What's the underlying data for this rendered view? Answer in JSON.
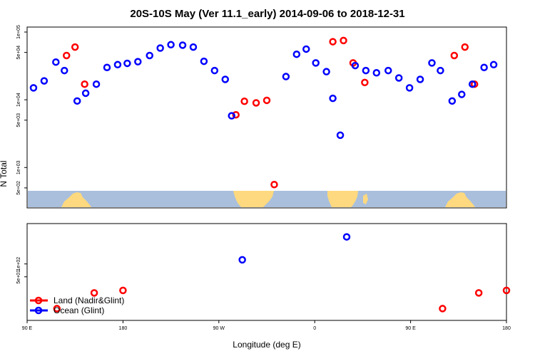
{
  "chart_data": {
    "type": "scatter",
    "title": "20S-10S May (Ver 11.1_early)   2014-09-06 to 2018-12-31",
    "xlabel": "Longitude (deg E)",
    "ylabel": "N Total",
    "x_ticks": [
      {
        "value": 90,
        "label": "90 E"
      },
      {
        "value": 180,
        "label": "180"
      },
      {
        "value": 270,
        "label": "90 W"
      },
      {
        "value": 360,
        "label": "0"
      },
      {
        "value": 450,
        "label": "90 E"
      },
      {
        "value": 540,
        "label": "180"
      }
    ],
    "xlim": [
      90,
      540
    ],
    "upper_panel": {
      "yscale": "log",
      "ylim": [
        300,
        100000
      ],
      "y_ticks": [
        {
          "value": 500,
          "label": "5e+02"
        },
        {
          "value": 1000,
          "label": "1e+03"
        },
        {
          "value": 5000,
          "label": "5e+03"
        },
        {
          "value": 10000,
          "label": "1e+04"
        },
        {
          "value": 50000,
          "label": "5e+04"
        },
        {
          "value": 100000,
          "label": "1e+05"
        }
      ],
      "series": [
        {
          "name": "Land (Nadir&Glint)",
          "color": "#ff0000",
          "points": [
            [
              127,
              45000
            ],
            [
              135,
              60000
            ],
            [
              144,
              17000
            ],
            [
              286,
              6000
            ],
            [
              294,
              9500
            ],
            [
              305,
              9000
            ],
            [
              315,
              9800
            ],
            [
              322,
              560
            ],
            [
              377,
              72000
            ],
            [
              387,
              75000
            ],
            [
              396,
              35000
            ],
            [
              407,
              18000
            ],
            [
              491,
              45000
            ],
            [
              501,
              60000
            ],
            [
              510,
              17000
            ]
          ]
        },
        {
          "name": "Ocean (Glint)",
          "color": "#0000ff",
          "points": [
            [
              96,
              15000
            ],
            [
              106,
              19000
            ],
            [
              117,
              36000
            ],
            [
              125,
              27000
            ],
            [
              137,
              9600
            ],
            [
              145,
              12500
            ],
            [
              155,
              17000
            ],
            [
              165,
              30000
            ],
            [
              175,
              33000
            ],
            [
              184,
              34500
            ],
            [
              194,
              36500
            ],
            [
              205,
              45000
            ],
            [
              215,
              58000
            ],
            [
              225,
              65000
            ],
            [
              236,
              64000
            ],
            [
              246,
              60000
            ],
            [
              256,
              37000
            ],
            [
              266,
              27000
            ],
            [
              276,
              20000
            ],
            [
              282,
              5800
            ],
            [
              333,
              22000
            ],
            [
              343,
              47000
            ],
            [
              352,
              56000
            ],
            [
              361,
              35000
            ],
            [
              371,
              26000
            ],
            [
              377,
              10500
            ],
            [
              384,
              3000
            ],
            [
              398,
              32000
            ],
            [
              408,
              27000
            ],
            [
              418,
              25000
            ],
            [
              429,
              27000
            ],
            [
              439,
              21000
            ],
            [
              449,
              15000
            ],
            [
              459,
              20000
            ],
            [
              470,
              35000
            ],
            [
              478,
              27000
            ],
            [
              489,
              9600
            ],
            [
              498,
              12000
            ],
            [
              508,
              17000
            ],
            [
              519,
              30000
            ],
            [
              528,
              33000
            ]
          ]
        }
      ]
    },
    "lower_panel": {
      "yscale": "log",
      "ylim": [
        6,
        700
      ],
      "y_ticks": [
        {
          "value": 50,
          "label": "5e+01"
        },
        {
          "value": 100,
          "label": "1e+02"
        }
      ],
      "series": [
        {
          "name": "Land (Nadir&Glint)",
          "color": "#ff0000",
          "points": [
            [
              118,
              9
            ],
            [
              153,
              21
            ],
            [
              180,
              24
            ],
            [
              480,
              9
            ],
            [
              514,
              21
            ],
            [
              540,
              24
            ]
          ]
        },
        {
          "name": "Ocean (Glint)",
          "color": "#0000ff",
          "points": [
            [
              292,
              125
            ],
            [
              390,
              430
            ]
          ]
        }
      ]
    },
    "legend": {
      "location": "bottom-left",
      "entries": [
        {
          "label": "Land (Nadir&Glint)",
          "color": "#ff0000"
        },
        {
          "label": "Ocean (Glint)",
          "color": "#0000ff"
        }
      ]
    },
    "map_strip": {
      "ocean_color": "#a9bfdc",
      "land_color": "#ffd97f"
    }
  }
}
